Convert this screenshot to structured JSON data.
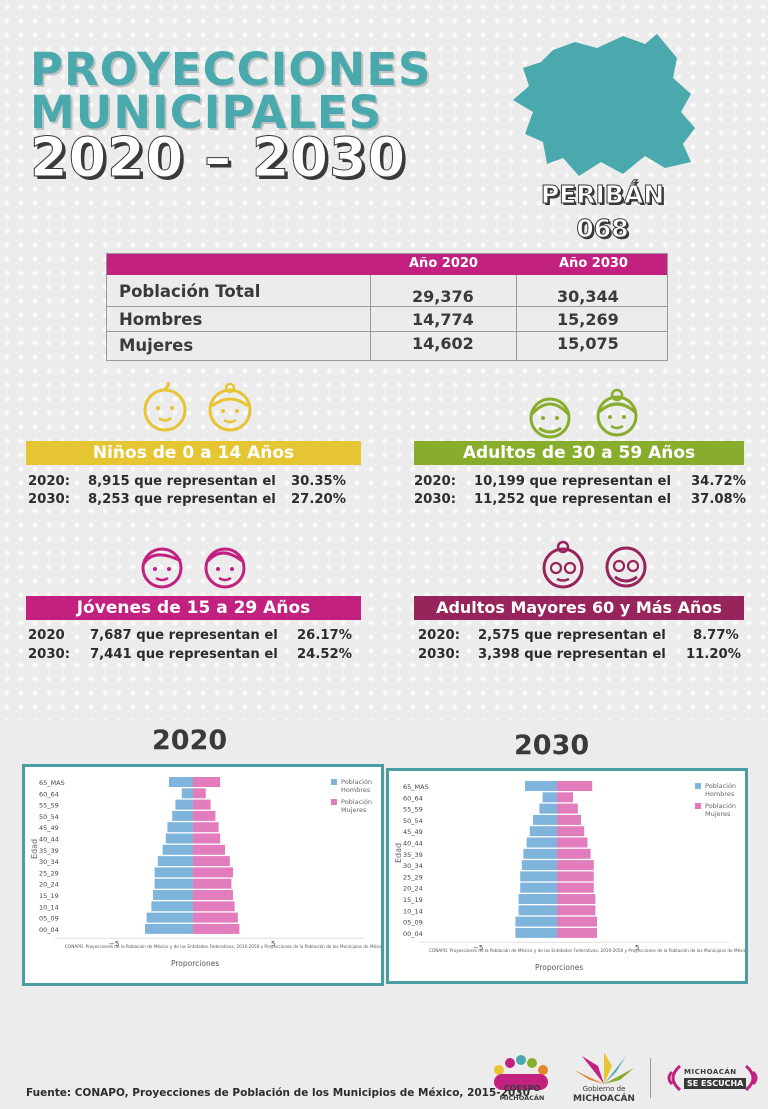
{
  "header": {
    "title_line1": "PROYECCIONES",
    "title_line2": "MUNICIPALES",
    "title_line3": "2020 – 2030",
    "municipality": "PERIBÁN",
    "code": "068"
  },
  "colors": {
    "teal": "#4aa9ad",
    "magenta": "#c3217f",
    "yellow": "#e6c533",
    "green": "#88ad2c",
    "maroon": "#97245a",
    "hombres": "#7fb5dc",
    "mujeres": "#e27cbc"
  },
  "table": {
    "col1": "Año 2020",
    "col2": "Año 2030",
    "rows": [
      {
        "label": "Población Total",
        "v2020": "29,376",
        "v2030": "30,344"
      },
      {
        "label": "Hombres",
        "v2020": "14,774",
        "v2030": "15,269"
      },
      {
        "label": "Mujeres",
        "v2020": "14,602",
        "v2030": "15,075"
      }
    ]
  },
  "groups": {
    "ninos": {
      "title": "Niños de 0 a 14 Años",
      "y2020": "2020:",
      "t2020": "8,915 que representan el",
      "p2020": "30.35%",
      "y2030": "2030:",
      "t2030": "8,253 que representan el",
      "p2030": "27.20%"
    },
    "adultos": {
      "title": "Adultos de 30 a 59 Años",
      "y2020": "2020:",
      "t2020": "10,199 que representan el",
      "p2020": "34.72%",
      "y2030": "2030:",
      "t2030": "11,252 que representan el",
      "p2030": "37.08%"
    },
    "jovenes": {
      "title": "Jóvenes de 15 a 29 Años",
      "y2020": "2020",
      "t2020": "7,687 que representan el",
      "p2020": "26.17%",
      "y2030": "2030:",
      "t2030": "7,441 que representan el",
      "p2030": "24.52%"
    },
    "mayores": {
      "title": "Adultos Mayores  60 y Más Años",
      "y2020": "2020:",
      "t2020": "2,575 que representan el",
      "p2020": "8.77%",
      "y2030": "2030:",
      "t2030": "3,398 que representan el",
      "p2030": "11.20%"
    }
  },
  "chart_data": [
    {
      "type": "bar",
      "title": "2020",
      "categories": [
        "65_MAS",
        "60_64",
        "55_59",
        "50_54",
        "45_49",
        "40_44",
        "35_39",
        "30_34",
        "25_29",
        "20_24",
        "15_19",
        "10_14",
        "05_09",
        "00_04"
      ],
      "series": [
        {
          "name": "Población Hombres",
          "values": [
            -1.5,
            -0.7,
            -1.1,
            -1.3,
            -1.6,
            -1.7,
            -1.9,
            -2.2,
            -2.4,
            -2.4,
            -2.5,
            -2.6,
            -2.9,
            -3.0
          ]
        },
        {
          "name": "Población Mujeres",
          "values": [
            1.7,
            0.8,
            1.1,
            1.4,
            1.6,
            1.7,
            2.0,
            2.3,
            2.5,
            2.4,
            2.5,
            2.6,
            2.8,
            2.9
          ]
        }
      ],
      "xlim": [
        -5,
        5
      ],
      "xticks": [
        "−5",
        "5"
      ],
      "xlabel": "Proporciones",
      "ylabel": "Edad",
      "note": "CONAPO. Proyecciones de la Población de México y de las Entidades Federativas, 2016-2050 y Proyecciones de la Población de los Municipios de México,",
      "legend": "top-right"
    },
    {
      "type": "bar",
      "title": "2030",
      "categories": [
        "65_MAS",
        "60_64",
        "55_59",
        "50_54",
        "45_49",
        "40_44",
        "35_39",
        "30_34",
        "25_29",
        "20_24",
        "15_19",
        "10_14",
        "05_09",
        "00_04"
      ],
      "series": [
        {
          "name": "Población Hombres",
          "values": [
            -2.0,
            -0.9,
            -1.1,
            -1.5,
            -1.7,
            -1.9,
            -2.1,
            -2.2,
            -2.3,
            -2.3,
            -2.4,
            -2.4,
            -2.6,
            -2.6
          ]
        },
        {
          "name": "Población Mujeres",
          "values": [
            2.2,
            1.0,
            1.3,
            1.5,
            1.7,
            1.9,
            2.1,
            2.3,
            2.3,
            2.3,
            2.4,
            2.4,
            2.5,
            2.5
          ]
        }
      ],
      "xlim": [
        -5,
        5
      ],
      "xticks": [
        "−5",
        "5"
      ],
      "xlabel": "Proporciones",
      "ylabel": "Edad",
      "note": "CONAPO. Proyecciones de la Población de México y de las Entidades Federativas, 2016-2050 y Proyecciones de la Población de los Municipios de México,",
      "legend": "top-right"
    }
  ],
  "footer": {
    "source": "Fuente: CONAPO, Proyecciones de Población de los Municipios de México, 2015-2030",
    "logo1_line1": "COESPO",
    "logo1_line2": "MICHOACÁN",
    "logo2_line1": "Gobierno de",
    "logo2_line2": "MICHOACÁN",
    "logo3_line1": "MICHOACÁN",
    "logo3_line2": "SE ESCUCHA"
  }
}
